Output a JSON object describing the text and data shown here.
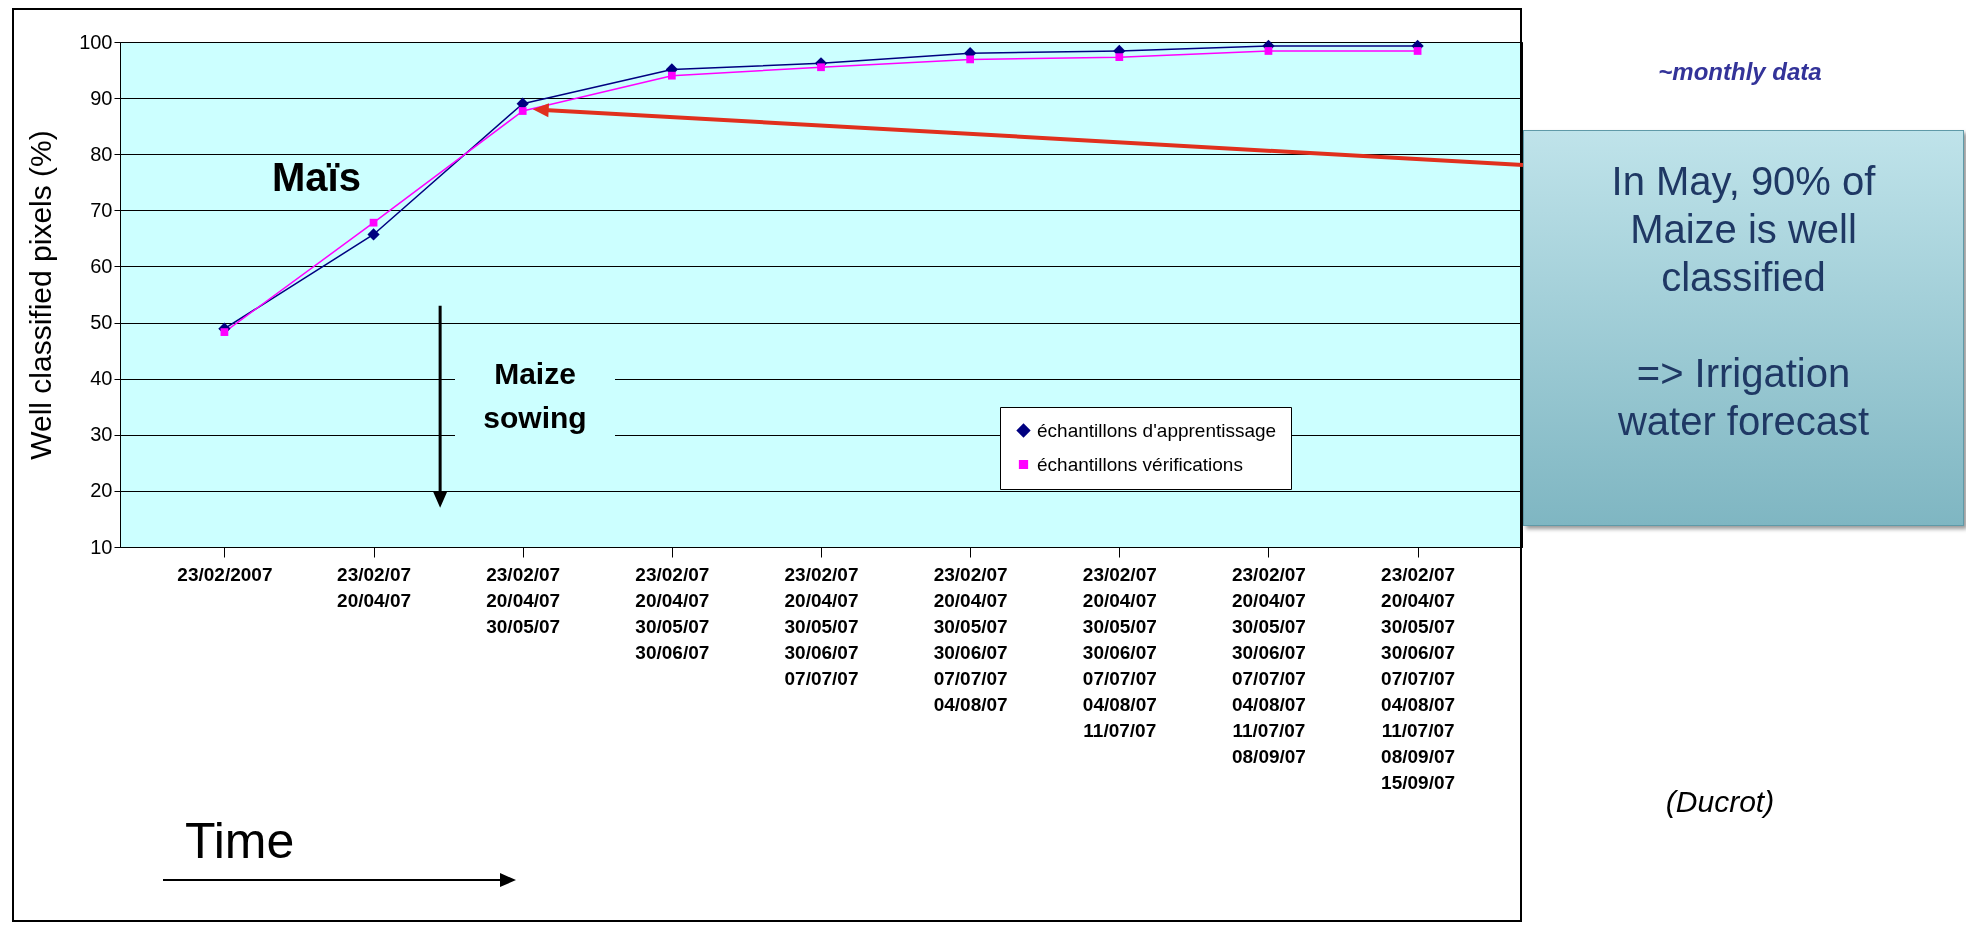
{
  "chart_data": {
    "type": "line",
    "ylabel": "Well classified pixels (%)",
    "categories": [
      "23/02/2007",
      "23/02/07\n20/04/07",
      "23/02/07\n20/04/07\n30/05/07",
      "23/02/07\n20/04/07\n30/05/07\n30/06/07",
      "23/02/07\n20/04/07\n30/05/07\n30/06/07\n07/07/07",
      "23/02/07\n20/04/07\n30/05/07\n30/06/07\n07/07/07\n04/08/07",
      "23/02/07\n20/04/07\n30/05/07\n30/06/07\n07/07/07\n04/08/07\n11/07/07",
      "23/02/07\n20/04/07\n30/05/07\n30/06/07\n07/07/07\n04/08/07\n11/07/07\n08/09/07",
      "23/02/07\n20/04/07\n30/05/07\n30/06/07\n07/07/07\n04/08/07\n11/07/07\n08/09/07\n15/09/07"
    ],
    "series": [
      {
        "name": "échantillons d'apprentissage",
        "color": "#000080",
        "marker": "diamond",
        "values": [
          48.9,
          65.7,
          89,
          95.1,
          96.2,
          98,
          98.4,
          99.3,
          99.3
        ]
      },
      {
        "name": "échantillons vérifications",
        "color": "#ff00ff",
        "marker": "square",
        "values": [
          48.3,
          67.8,
          87.7,
          94,
          95.5,
          96.9,
          97.3,
          98.4,
          98.4
        ]
      }
    ],
    "ylim": [
      10,
      100
    ],
    "yticks": [
      10,
      20,
      30,
      40,
      50,
      60,
      70,
      80,
      90,
      100
    ],
    "grid": "y",
    "legend": "bottom right",
    "annotations": [
      "Maïs",
      "Maize sowing",
      "Time",
      "~monthly data",
      "In May, 90% of Maize is well classified\n\n=> Irrigation water forecast",
      "(Ducrot)"
    ]
  }
}
